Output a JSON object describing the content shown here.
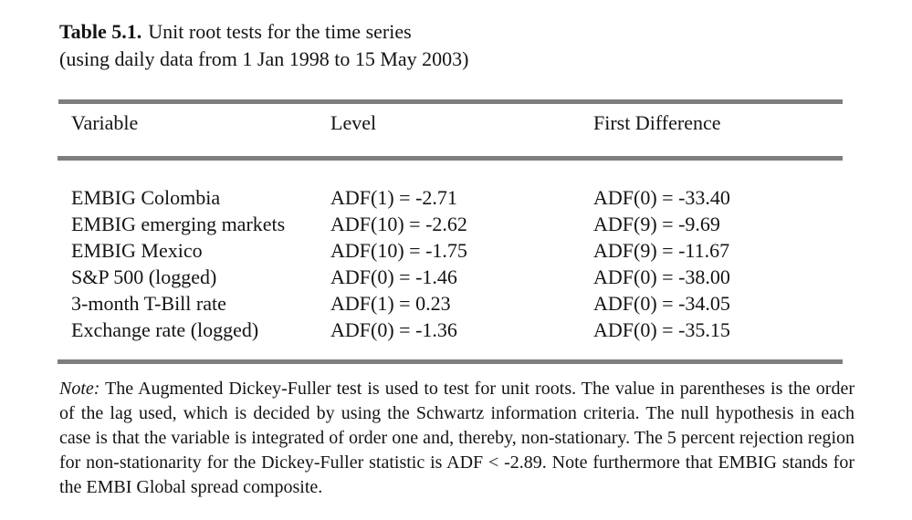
{
  "document": {
    "title_label": "Table 5.1.",
    "title_text": "Unit root tests for the time series",
    "title_line2": "(using daily data from 1 Jan 1998 to 15 May 2003)"
  },
  "table": {
    "columns": [
      "Variable",
      "Level",
      "First Difference"
    ],
    "rows": [
      {
        "variable": "EMBIG Colombia",
        "level": "ADF(1) = -2.71",
        "first_difference": "ADF(0) = -33.40"
      },
      {
        "variable": "EMBIG emerging markets",
        "level": "ADF(10) = -2.62",
        "first_difference": "ADF(9) = -9.69"
      },
      {
        "variable": "EMBIG Mexico",
        "level": "ADF(10) = -1.75",
        "first_difference": "ADF(9) = -11.67"
      },
      {
        "variable": "S&P 500 (logged)",
        "level": "ADF(0) = -1.46",
        "first_difference": "ADF(0) = -38.00"
      },
      {
        "variable": "3-month T-Bill rate",
        "level": "ADF(1) = 0.23",
        "first_difference": "ADF(0) = -34.05"
      },
      {
        "variable": "Exchange rate (logged)",
        "level": "ADF(0) = -1.36",
        "first_difference": "ADF(0) = -35.15"
      }
    ]
  },
  "note": {
    "label": "Note:",
    "text": "The Augmented Dickey-Fuller test is used to test for unit roots.  The value in parentheses is the order of the lag used, which is decided by using the Schwartz information criteria.  The null hypothesis in each case is that the variable is integrated of order one and, thereby, non-stationary.  The 5 percent rejection region for non-stationarity for the Dickey-Fuller statistic is ADF < -2.89.  Note furthermore that EMBIG stands for the EMBI Global spread composite."
  },
  "colors": {
    "rule_gray": "#7e7e7e",
    "text": "#141414",
    "background": "#ffffff"
  }
}
